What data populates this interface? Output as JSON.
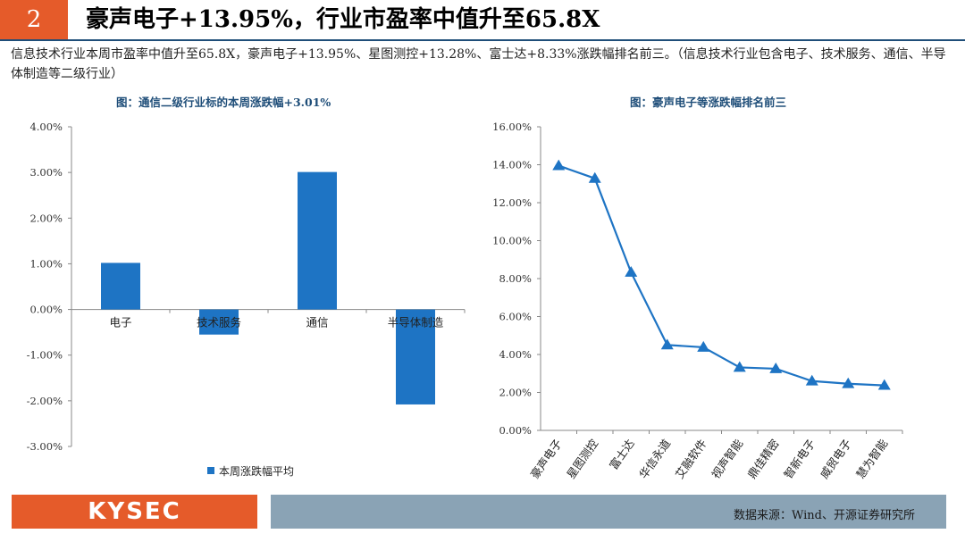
{
  "header": {
    "number": "2",
    "title": "豪声电子+13.95%，行业市盈率中值升至65.8X"
  },
  "summary": "信息技术行业本周市盈率中值升至65.8X，豪声电子+13.95%、星图测控+13.28%、富士达+8.33%涨跌幅排名前三。（信息技术行业包含电子、技术服务、通信、半导体制造等二级行业）",
  "footer": {
    "logo": "KYSEC",
    "source": "数据来源：Wind、开源证券研究所"
  },
  "colors": {
    "accent_orange": "#e55b2a",
    "bar_blue": "#1e74c4",
    "footer_blue": "#8aa3b5",
    "title_blue": "#1f4e79"
  },
  "chart_data": [
    {
      "type": "bar",
      "title": "图：通信二级行业标的本周涨跌幅+3.01%",
      "categories": [
        "电子",
        "技术服务",
        "通信",
        "半导体制造"
      ],
      "series": [
        {
          "name": "本周涨跌幅平均",
          "values": [
            1.02,
            -0.55,
            3.01,
            -2.08
          ]
        }
      ],
      "yticks": [
        "4.00%",
        "3.00%",
        "2.00%",
        "1.00%",
        "0.00%",
        "-1.00%",
        "-2.00%",
        "-3.00%"
      ],
      "ylim": [
        -3,
        4
      ],
      "legend": "bottom",
      "grid": false
    },
    {
      "type": "line",
      "title": "图：豪声电子等涨跌幅排名前三",
      "categories": [
        "豪声电子",
        "星图测控",
        "富士达",
        "华信永道",
        "艾融软件",
        "视声智能",
        "鼎佳精密",
        "智新电子",
        "威贸电子",
        "慧为智能"
      ],
      "series": [
        {
          "values": [
            13.95,
            13.28,
            8.33,
            4.5,
            4.38,
            3.32,
            3.25,
            2.6,
            2.46,
            2.37
          ]
        }
      ],
      "yticks": [
        "16.00%",
        "14.00%",
        "12.00%",
        "10.00%",
        "8.00%",
        "6.00%",
        "4.00%",
        "2.00%",
        "0.00%"
      ],
      "ylim": [
        0,
        16
      ],
      "marker": "triangle",
      "legend": "none",
      "grid": false
    }
  ]
}
